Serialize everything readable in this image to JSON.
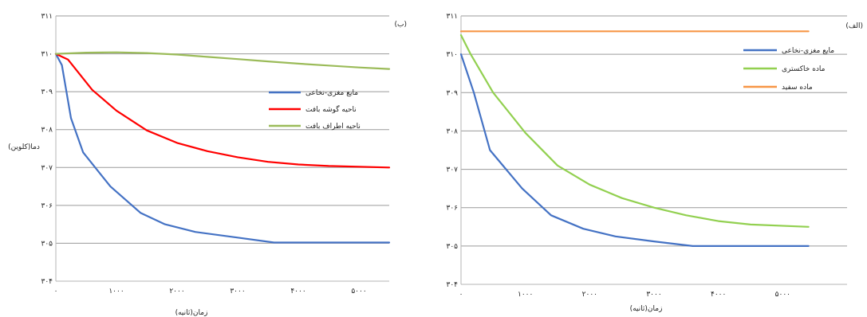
{
  "chart_data": [
    {
      "type": "line",
      "panel_label": "(ب)",
      "xlabel": "زمان(ثانیه)",
      "ylabel": "دما(کلوین)",
      "xlim": [
        0,
        5500
      ],
      "ylim": [
        304,
        311
      ],
      "xticks": [
        {
          "value": 0,
          "label": "۰"
        },
        {
          "value": 1000,
          "label": "۱۰۰۰"
        },
        {
          "value": 2000,
          "label": "۲۰۰۰"
        },
        {
          "value": 3000,
          "label": "۳۰۰۰"
        },
        {
          "value": 4000,
          "label": "۴۰۰۰"
        },
        {
          "value": 5000,
          "label": "۵۰۰۰"
        }
      ],
      "yticks": [
        {
          "value": 304,
          "label": "۳۰۴"
        },
        {
          "value": 305,
          "label": "۳۰۵"
        },
        {
          "value": 306,
          "label": "۳۰۶"
        },
        {
          "value": 307,
          "label": "۳۰۷"
        },
        {
          "value": 308,
          "label": "۳۰۸"
        },
        {
          "value": 309,
          "label": "۳۰۹"
        },
        {
          "value": 310,
          "label": "۳۱۰"
        },
        {
          "value": 311,
          "label": "۳۱۱"
        }
      ],
      "grid": true,
      "legend_position": "right-center",
      "series": [
        {
          "name": "مایع مغزی-نخاعی",
          "color": "#4472C4",
          "x": [
            0,
            100,
            250,
            450,
            900,
            1400,
            1800,
            2300,
            3000,
            3600,
            4200,
            5500
          ],
          "y": [
            310,
            309.7,
            308.3,
            307.4,
            306.5,
            305.8,
            305.5,
            305.3,
            305.15,
            305.02,
            305.02,
            305.02
          ]
        },
        {
          "name": "ناحیه گوشه بافت",
          "color": "#FF0000",
          "x": [
            0,
            200,
            600,
            1000,
            1500,
            2000,
            2500,
            3000,
            3500,
            4000,
            4500,
            5500
          ],
          "y": [
            310,
            309.85,
            309.05,
            308.5,
            307.98,
            307.65,
            307.43,
            307.27,
            307.15,
            307.08,
            307.04,
            307.0
          ]
        },
        {
          "name": "ناحیه اطراف بافت",
          "color": "#9BBB59",
          "x": [
            0,
            500,
            1000,
            1500,
            2000,
            2500,
            3000,
            3500,
            4000,
            4500,
            5000,
            5500
          ],
          "y": [
            310,
            310.03,
            310.04,
            310.02,
            309.98,
            309.92,
            309.86,
            309.8,
            309.74,
            309.69,
            309.64,
            309.6
          ]
        }
      ]
    },
    {
      "type": "line",
      "panel_label": "(الف)",
      "xlabel": "زمان(ثانیه)",
      "ylabel": "",
      "xlim": [
        0,
        6000
      ],
      "ylim": [
        304,
        311
      ],
      "xticks": [
        {
          "value": 0,
          "label": "۰"
        },
        {
          "value": 1000,
          "label": "۱۰۰۰"
        },
        {
          "value": 2000,
          "label": "۲۰۰۰"
        },
        {
          "value": 3000,
          "label": "۳۰۰۰"
        },
        {
          "value": 4000,
          "label": "۴۰۰۰"
        },
        {
          "value": 5000,
          "label": "۵۰۰۰"
        }
      ],
      "yticks": [
        {
          "value": 304,
          "label": "۳۰۴"
        },
        {
          "value": 305,
          "label": "۳۰۵"
        },
        {
          "value": 306,
          "label": "۳۰۶"
        },
        {
          "value": 307,
          "label": "۳۰۷"
        },
        {
          "value": 308,
          "label": "۳۰۸"
        },
        {
          "value": 309,
          "label": "۳۰۹"
        },
        {
          "value": 310,
          "label": "۳۱۰"
        },
        {
          "value": 311,
          "label": "۳۱۱"
        }
      ],
      "grid": true,
      "legend_position": "top-right",
      "series": [
        {
          "name": "مایع مغزی-نخاعی",
          "color": "#4472C4",
          "x": [
            0,
            200,
            450,
            950,
            1400,
            1900,
            2400,
            3000,
            3600,
            4200,
            5400
          ],
          "y": [
            310,
            309.0,
            307.5,
            306.5,
            305.8,
            305.45,
            305.25,
            305.12,
            305.0,
            305.0,
            305.0
          ]
        },
        {
          "name": "ماده خاکستری",
          "color": "#92D050",
          "x": [
            0,
            150,
            500,
            1000,
            1500,
            2000,
            2500,
            3000,
            3500,
            4000,
            4500,
            5400
          ],
          "y": [
            310.5,
            310.0,
            309.0,
            307.95,
            307.1,
            306.6,
            306.25,
            306.0,
            305.8,
            305.65,
            305.56,
            305.5
          ]
        },
        {
          "name": "ماده سفید",
          "color": "#F79646",
          "x": [
            0,
            5400
          ],
          "y": [
            310.6,
            310.6
          ]
        }
      ]
    }
  ]
}
